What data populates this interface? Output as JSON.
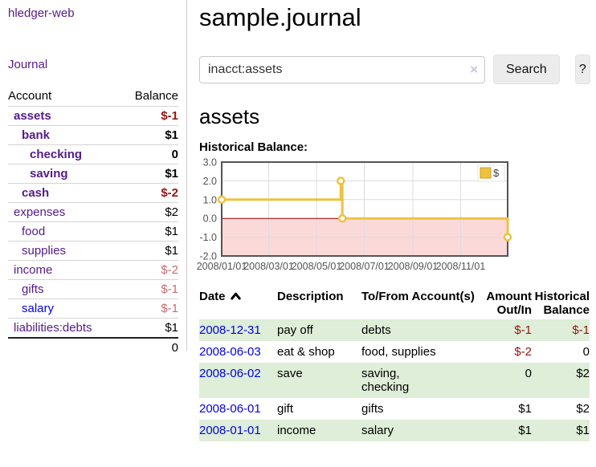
{
  "colors": {
    "purple_link": "#551a8b",
    "blue_link": "#0000ee",
    "negative_strong": "#941414",
    "negative_soft": "#c96b6b",
    "row_green": "#deeed8",
    "chart_gold": "#edc240",
    "chart_pink": "#fcd9d9",
    "chart_zero_red": "#a40000"
  },
  "sidebar": {
    "brand": "hledger-web",
    "journal_link": "Journal",
    "accounts": {
      "headers": {
        "account": "Account",
        "balance": "Balance"
      },
      "rows": [
        {
          "name": "assets",
          "depth": 0,
          "balance": "$-1",
          "match": true
        },
        {
          "name": "bank",
          "depth": 1,
          "balance": "$1",
          "match": true
        },
        {
          "name": "checking",
          "depth": 2,
          "balance": "0",
          "match": true
        },
        {
          "name": "saving",
          "depth": 2,
          "balance": "$1",
          "match": true
        },
        {
          "name": "cash",
          "depth": 1,
          "balance": "$-2",
          "match": true
        },
        {
          "name": "expenses",
          "depth": 0,
          "balance": "$2",
          "match": false
        },
        {
          "name": "food",
          "depth": 1,
          "balance": "$1",
          "match": false
        },
        {
          "name": "supplies",
          "depth": 1,
          "balance": "$1",
          "match": false
        },
        {
          "name": "income",
          "depth": 0,
          "balance": "$-2",
          "match": false
        },
        {
          "name": "gifts",
          "depth": 1,
          "balance": "$-1",
          "match": false
        },
        {
          "name": "salary",
          "depth": 1,
          "balance": "$-1",
          "match": false,
          "unvisited": true
        },
        {
          "name": "liabilities:debts",
          "depth": 0,
          "balance": "$1",
          "match": false
        }
      ],
      "total": "0"
    }
  },
  "main": {
    "title": "sample.journal",
    "search": {
      "value": "inacct:assets",
      "clear_icon": "×",
      "search_button": "Search",
      "help_button": "?"
    },
    "account_heading": "assets",
    "chart_label": "Historical Balance:",
    "transactions": {
      "headers": {
        "date": "Date",
        "description": "Description",
        "accounts": "To/From Account(s)",
        "amount": "Amount Out/In",
        "balance": "Historical Balance"
      },
      "sort": {
        "column": "date",
        "direction": "ascending"
      },
      "rows": [
        {
          "date": "2008-12-31",
          "description": "pay off",
          "accounts": "debts",
          "amount": "$-1",
          "balance": "$-1"
        },
        {
          "date": "2008-06-03",
          "description": "eat & shop",
          "accounts": "food, supplies",
          "amount": "$-2",
          "balance": "0"
        },
        {
          "date": "2008-06-02",
          "description": "save",
          "accounts": "saving,\nchecking",
          "amount": "0",
          "balance": "$2"
        },
        {
          "date": "2008-06-01",
          "description": "gift",
          "accounts": "gifts",
          "amount": "$1",
          "balance": "$2"
        },
        {
          "date": "2008-01-01",
          "description": "income",
          "accounts": "salary",
          "amount": "$1",
          "balance": "$1"
        }
      ]
    }
  },
  "chart_data": {
    "type": "line",
    "step": true,
    "title": "Historical Balance",
    "series": [
      {
        "name": "$",
        "points": [
          {
            "date": "2008-01-01",
            "value": 1
          },
          {
            "date": "2008-06-01",
            "value": 2
          },
          {
            "date": "2008-06-03",
            "value": 0
          },
          {
            "date": "2008-12-31",
            "value": -1
          }
        ]
      }
    ],
    "x_range": [
      "2008-01-01",
      "2008-12-31"
    ],
    "x_ticks": [
      "2008/01/01",
      "2008/03/01",
      "2008/05/01",
      "2008/07/01",
      "2008/09/01",
      "2008/11/01"
    ],
    "y_ticks": [
      3.0,
      2.0,
      1.0,
      0.0,
      -1.0,
      -2.0
    ],
    "ylim": [
      -2,
      3
    ],
    "grid": true,
    "legend": {
      "label": "$",
      "position": "top-right"
    }
  }
}
